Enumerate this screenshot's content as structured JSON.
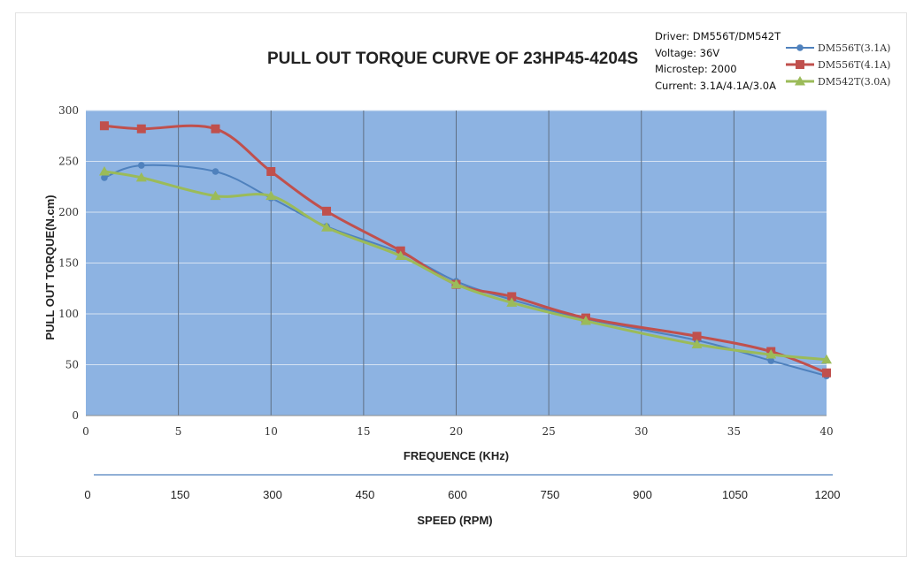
{
  "chart_data": {
    "type": "line",
    "title": "PULL OUT TORQUE CURVE OF 23HP45-4204S",
    "notes": [
      "Driver: DM556T/DM542T",
      "Voltage: 36V",
      "Microstep: 2000",
      "Current: 3.1A/4.1A/3.0A"
    ],
    "xlabel": "FREQUENCE (KHz)",
    "ylabel": "PULL OUT TORQUE(N.cm)",
    "secondary_xlabel": "SPEED (RPM)",
    "xlim": [
      0,
      40
    ],
    "ylim": [
      0,
      300
    ],
    "x_ticks": [
      "0",
      "5",
      "10",
      "15",
      "20",
      "25",
      "30",
      "35",
      "40"
    ],
    "y_ticks": [
      "0",
      "50",
      "100",
      "150",
      "200",
      "250",
      "300"
    ],
    "speed_ticks": [
      "0",
      "150",
      "300",
      "450",
      "600",
      "750",
      "900",
      "1050",
      "1200"
    ],
    "grid": true,
    "legend_position": "top-right",
    "plot_background": "#8db3e2",
    "series": [
      {
        "name": "DM556T(3.1A)",
        "color": "#4f81bd",
        "marker": "circle",
        "x": [
          1,
          3,
          7,
          10,
          13,
          17,
          20,
          23,
          27,
          33,
          37,
          40
        ],
        "values": [
          234,
          246,
          240,
          214,
          186,
          160,
          132,
          114,
          95,
          74,
          54,
          39
        ]
      },
      {
        "name": "DM556T(4.1A)",
        "color": "#c0504d",
        "marker": "square",
        "x": [
          1,
          3,
          7,
          10,
          13,
          17,
          20,
          23,
          27,
          33,
          37,
          40
        ],
        "values": [
          285,
          282,
          282,
          240,
          201,
          162,
          129,
          117,
          96,
          78,
          63,
          42
        ]
      },
      {
        "name": "DM542T(3.0A)",
        "color": "#9bbb59",
        "marker": "triangle",
        "x": [
          1,
          3,
          7,
          10,
          13,
          17,
          20,
          23,
          27,
          33,
          37,
          40
        ],
        "values": [
          240,
          234,
          216,
          216,
          185,
          157,
          129,
          111,
          93,
          70,
          60,
          55
        ]
      }
    ]
  }
}
